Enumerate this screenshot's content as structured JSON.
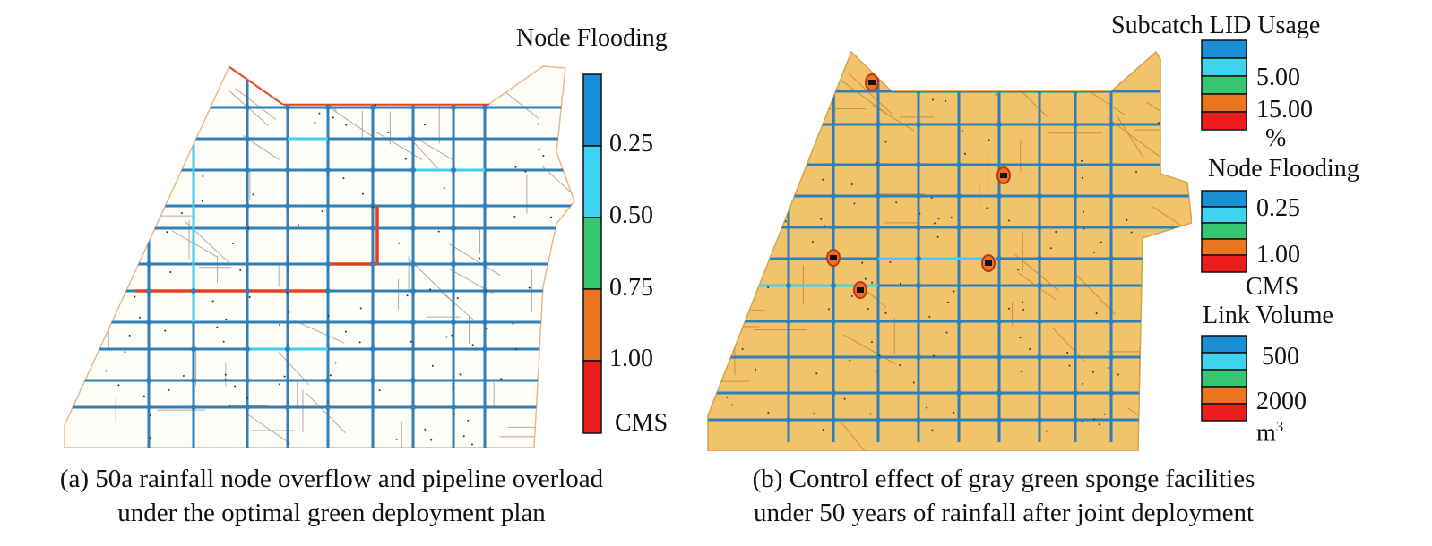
{
  "panel_a": {
    "legend": {
      "title": "Node Flooding",
      "colors": [
        "#1b8fd6",
        "#3ed4ef",
        "#35c66f",
        "#e9761e",
        "#ee1d1d"
      ],
      "labels": [
        "0.25",
        "0.50",
        "0.75",
        "1.00"
      ],
      "unit": "CMS"
    },
    "caption_line1": "(a) 50a rainfall node overflow and pipeline overload",
    "caption_line2": "under the optimal green deployment plan"
  },
  "panel_b": {
    "lid_legend": {
      "title": "Subcatch LID Usage",
      "colors": [
        "#1b8fd6",
        "#3ed4ef",
        "#35c66f",
        "#e9761e",
        "#ee1d1d"
      ],
      "labels": [
        "5.00",
        "15.00"
      ],
      "unit": "%"
    },
    "node_legend": {
      "title": "Node Flooding",
      "colors": [
        "#1b8fd6",
        "#3ed4ef",
        "#35c66f",
        "#e9761e",
        "#ee1d1d"
      ],
      "labels": [
        "0.25",
        "1.00"
      ],
      "unit": "CMS"
    },
    "link_legend": {
      "title": "Link Volume",
      "colors": [
        "#1b8fd6",
        "#3ed4ef",
        "#35c66f",
        "#e9761e",
        "#ee1d1d"
      ],
      "labels": [
        "500",
        "2000"
      ],
      "unit": "m",
      "unit_sup": "3"
    },
    "caption_line1": "(b) Control effect of gray green sponge facilities",
    "caption_line2": "under 50 years of rainfall after joint deployment"
  },
  "map_colors": {
    "pipe": "#2f7fb8",
    "pipe_light": "#3fd0ec",
    "overflow": "#e8411e",
    "catch_line_a": "#e9b88a",
    "fill_b": "#f1c36b"
  }
}
